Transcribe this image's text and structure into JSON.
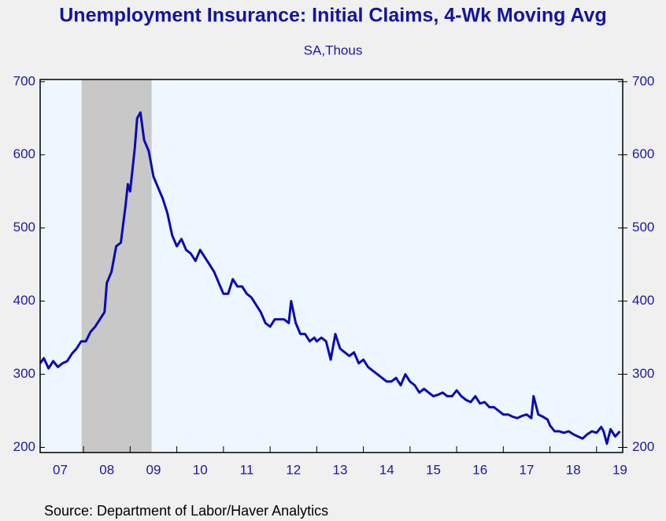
{
  "chart_data": {
    "type": "line",
    "title": "Unemployment Insurance: Initial Claims, 4-Wk Moving Avg",
    "subtitle": "SA,Thous",
    "source": "Source:  Department of Labor/Haver Analytics",
    "color": "#0a0ab4",
    "recession": [
      2007.96,
      2009.46
    ],
    "x": [
      2007.07,
      2007.15,
      2007.25,
      2007.35,
      2007.45,
      2007.55,
      2007.65,
      2007.75,
      2007.85,
      2007.95,
      2008.05,
      2008.15,
      2008.25,
      2008.35,
      2008.45,
      2008.5,
      2008.6,
      2008.7,
      2008.8,
      2008.9,
      2008.95,
      2009.0,
      2009.1,
      2009.15,
      2009.22,
      2009.3,
      2009.4,
      2009.5,
      2009.6,
      2009.7,
      2009.8,
      2009.9,
      2010.0,
      2010.1,
      2010.2,
      2010.3,
      2010.4,
      2010.5,
      2010.6,
      2010.7,
      2010.8,
      2010.9,
      2011.0,
      2011.1,
      2011.2,
      2011.3,
      2011.4,
      2011.5,
      2011.6,
      2011.7,
      2011.8,
      2011.9,
      2012.0,
      2012.1,
      2012.2,
      2012.3,
      2012.4,
      2012.45,
      2012.55,
      2012.65,
      2012.75,
      2012.85,
      2012.95,
      2013.0,
      2013.1,
      2013.2,
      2013.3,
      2013.4,
      2013.5,
      2013.6,
      2013.7,
      2013.8,
      2013.9,
      2014.0,
      2014.1,
      2014.2,
      2014.3,
      2014.4,
      2014.5,
      2014.6,
      2014.7,
      2014.8,
      2014.9,
      2015.0,
      2015.1,
      2015.2,
      2015.3,
      2015.4,
      2015.5,
      2015.6,
      2015.7,
      2015.8,
      2015.9,
      2016.0,
      2016.1,
      2016.2,
      2016.3,
      2016.4,
      2016.5,
      2016.6,
      2016.7,
      2016.8,
      2016.9,
      2017.0,
      2017.1,
      2017.2,
      2017.3,
      2017.4,
      2017.5,
      2017.6,
      2017.65,
      2017.75,
      2017.85,
      2017.95,
      2018.0,
      2018.1,
      2018.2,
      2018.3,
      2018.4,
      2018.5,
      2018.6,
      2018.7,
      2018.8,
      2018.9,
      2019.0,
      2019.1,
      2019.15,
      2019.22,
      2019.3,
      2019.4,
      2019.5
    ],
    "values": [
      315,
      322,
      308,
      318,
      310,
      315,
      318,
      328,
      335,
      345,
      345,
      358,
      365,
      375,
      385,
      425,
      440,
      475,
      480,
      530,
      560,
      550,
      610,
      650,
      658,
      620,
      605,
      570,
      555,
      540,
      520,
      490,
      475,
      485,
      470,
      465,
      455,
      470,
      460,
      450,
      440,
      425,
      410,
      410,
      430,
      420,
      420,
      410,
      405,
      395,
      385,
      370,
      365,
      375,
      375,
      375,
      370,
      400,
      370,
      355,
      355,
      345,
      350,
      345,
      350,
      345,
      320,
      355,
      335,
      330,
      325,
      330,
      315,
      320,
      310,
      305,
      300,
      295,
      290,
      290,
      295,
      285,
      300,
      290,
      285,
      275,
      280,
      275,
      270,
      272,
      275,
      270,
      270,
      278,
      270,
      265,
      262,
      270,
      260,
      262,
      255,
      255,
      250,
      245,
      245,
      242,
      240,
      243,
      245,
      240,
      270,
      245,
      242,
      238,
      230,
      222,
      222,
      220,
      222,
      218,
      215,
      212,
      218,
      222,
      220,
      228,
      222,
      205,
      225,
      215,
      222
    ],
    "xlim": [
      2007.07,
      2019.56
    ],
    "ylim": [
      193,
      703
    ],
    "yticks": [
      200,
      300,
      400,
      500,
      600,
      700
    ],
    "xtick_marks": [
      2008,
      2009,
      2010,
      2011,
      2012,
      2013,
      2014,
      2015,
      2016,
      2017,
      2018,
      2019
    ],
    "xticks": [
      {
        "value": 2007.5,
        "label": "07"
      },
      {
        "value": 2008.5,
        "label": "08"
      },
      {
        "value": 2009.5,
        "label": "09"
      },
      {
        "value": 2010.5,
        "label": "10"
      },
      {
        "value": 2011.5,
        "label": "11"
      },
      {
        "value": 2012.5,
        "label": "12"
      },
      {
        "value": 2013.5,
        "label": "13"
      },
      {
        "value": 2014.5,
        "label": "14"
      },
      {
        "value": 2015.5,
        "label": "15"
      },
      {
        "value": 2016.5,
        "label": "16"
      },
      {
        "value": 2017.5,
        "label": "17"
      },
      {
        "value": 2018.5,
        "label": "18"
      },
      {
        "value": 2019.5,
        "label": "19"
      }
    ]
  }
}
